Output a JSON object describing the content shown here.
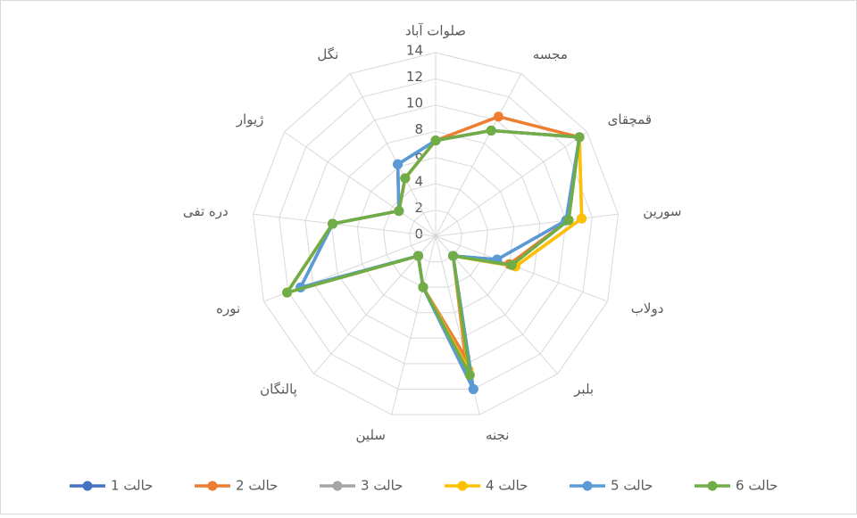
{
  "chart_data": {
    "type": "radar",
    "categories": [
      "صلوات آباد",
      "مجسه",
      "قمچقای",
      "سورین",
      "دولاب",
      "بلبر",
      "نجنه",
      "سلین",
      "پالنگان",
      "نوره",
      "دره تفی",
      "ژیوار",
      "نگل"
    ],
    "ylim": [
      0,
      14
    ],
    "yticks": [
      0,
      2,
      4,
      6,
      8,
      10,
      12,
      14
    ],
    "grid": true,
    "legend": "bottom",
    "series": [
      {
        "name": "حالت 1",
        "color": "#4472c4",
        "values": [
          7.3,
          9.1,
          13.3,
          10,
          5,
          2,
          12,
          4,
          2,
          11,
          7.9,
          3.4,
          6.2
        ]
      },
      {
        "name": "حالت 2",
        "color": "#ed7d31",
        "values": [
          7.3,
          10.3,
          13.3,
          10.2,
          6,
          2,
          9.5,
          4,
          2,
          12.1,
          7.9,
          3.4,
          5
        ]
      },
      {
        "name": "حالت 3",
        "color": "#a5a5a5",
        "values": [
          7.3,
          9.1,
          13.3,
          11.2,
          6.5,
          2,
          10.5,
          4,
          2,
          12.1,
          7.9,
          3.4,
          5
        ]
      },
      {
        "name": "حالت 4",
        "color": "#ffc000",
        "values": [
          7.3,
          9.1,
          13.3,
          11.2,
          6.5,
          2,
          10.5,
          4,
          2,
          12.1,
          7.9,
          3.4,
          5
        ]
      },
      {
        "name": "حالت 5",
        "color": "#5b9bd5",
        "values": [
          7.3,
          9.1,
          13.3,
          10,
          5,
          2,
          12,
          4,
          2,
          11,
          7.9,
          3.4,
          6.2
        ]
      },
      {
        "name": "حالت 6",
        "color": "#70ad47",
        "values": [
          7.3,
          9.1,
          13.3,
          10.2,
          6.2,
          2,
          10.9,
          4,
          2,
          12.1,
          7.9,
          3.4,
          5
        ]
      }
    ]
  }
}
